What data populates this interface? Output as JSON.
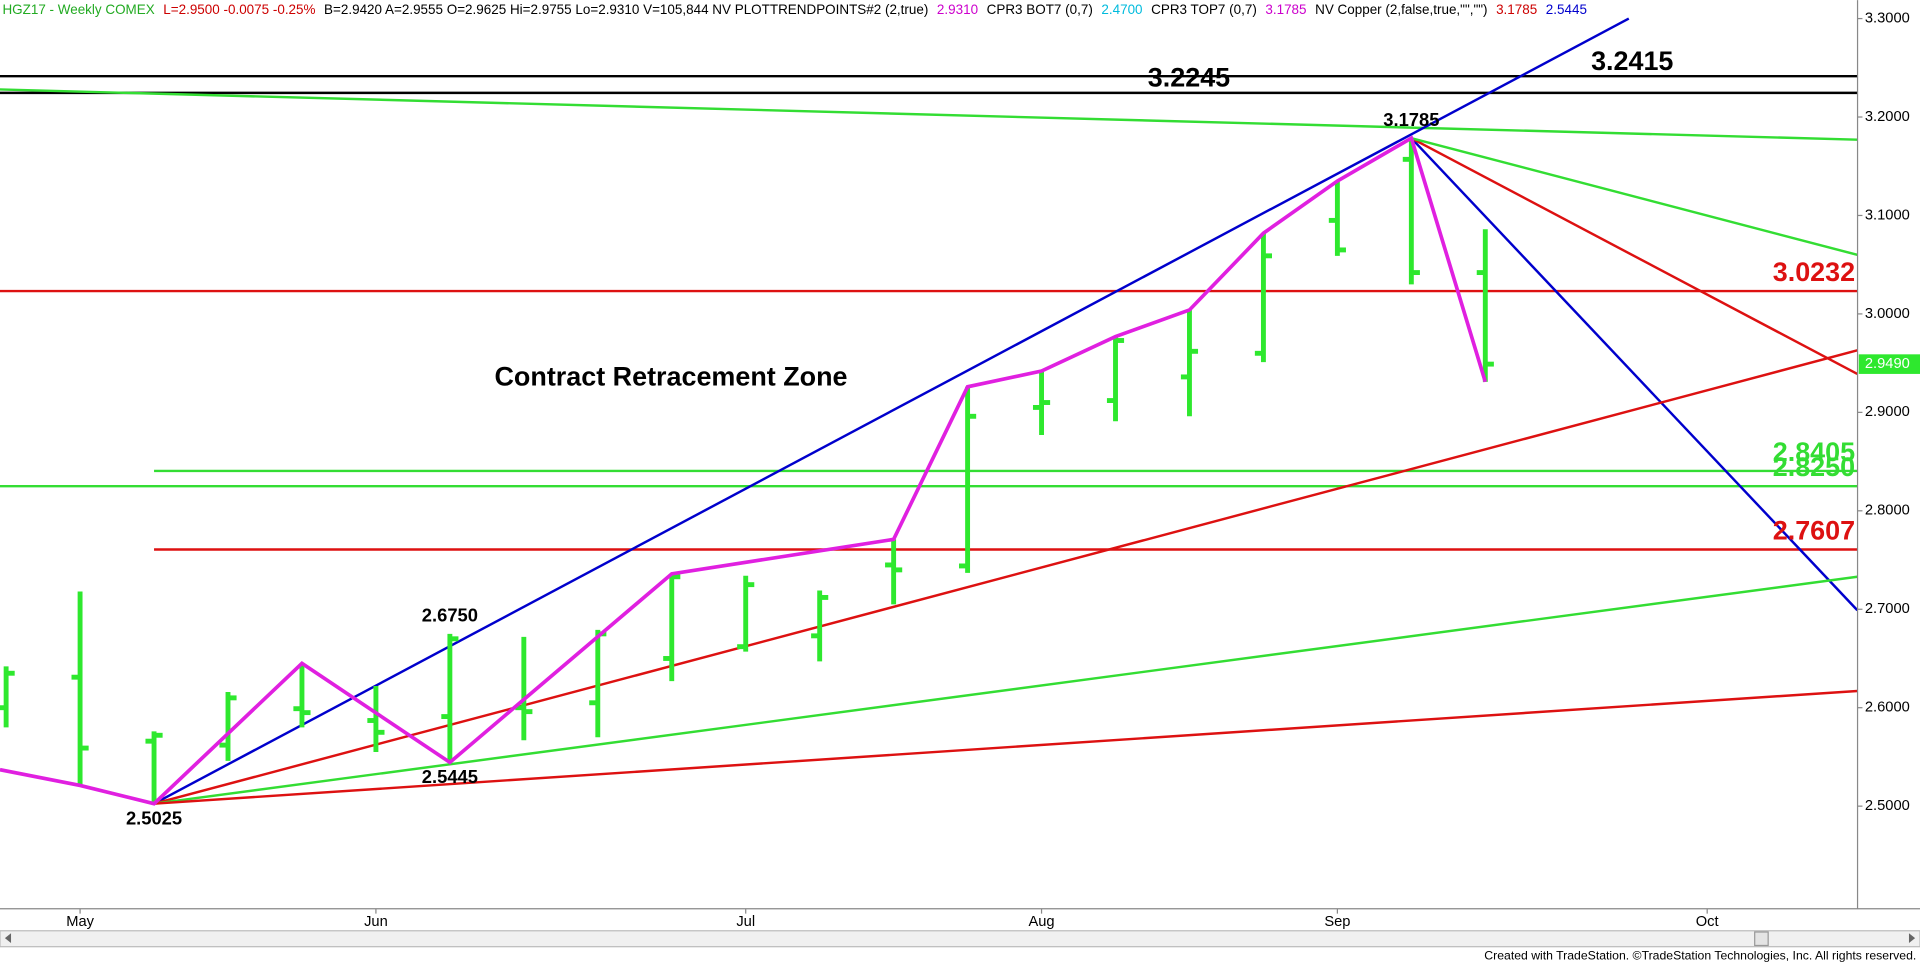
{
  "header": {
    "segments": [
      {
        "text": "HGZ17 - Weekly  COMEX",
        "color": "#22aa22"
      },
      {
        "text": "L=2.9500  -0.0075  -0.25%",
        "color": "#cc0000"
      },
      {
        "text": "B=2.9420  A=2.9555  O=2.9625  Hi=2.9755  Lo=2.9310  V=105,844  NV  PLOTTRENDPOINTS#2 (2,true)",
        "color": "#000000"
      },
      {
        "text": "2.9310",
        "color": "#cc00cc"
      },
      {
        "text": "CPR3 BOT7 (0,7)",
        "color": "#000000"
      },
      {
        "text": "2.4700",
        "color": "#00bbdd"
      },
      {
        "text": "CPR3 TOP7 (0,7)",
        "color": "#000000"
      },
      {
        "text": "3.1785",
        "color": "#cc00cc"
      },
      {
        "text": "NV Copper (2,false,true,\"\",\"\")",
        "color": "#000000"
      },
      {
        "text": "3.1785",
        "color": "#cc0000"
      },
      {
        "text": "2.5445",
        "color": "#0000cc"
      }
    ]
  },
  "footer": "Created with TradeStation. ©TradeStation Technologies, Inc. All rights reserved.",
  "chart_data": {
    "type": "ohlc",
    "categories": [
      null,
      "May",
      null,
      null,
      null,
      "Jun",
      null,
      null,
      null,
      null,
      "Jul",
      null,
      null,
      null,
      "Aug",
      null,
      null,
      null,
      "Sep",
      null,
      null,
      null,
      null,
      "Oct",
      null,
      null
    ],
    "open": [
      2.6,
      2.631,
      2.566,
      2.562,
      2.599,
      2.587,
      2.591,
      2.6,
      2.605,
      2.65,
      2.662,
      2.673,
      2.745,
      2.744,
      2.905,
      2.912,
      2.936,
      2.96,
      3.095,
      3.157,
      3.042,
      null,
      null,
      null,
      null,
      null
    ],
    "high": [
      2.642,
      2.718,
      2.576,
      2.616,
      2.645,
      2.622,
      2.675,
      2.672,
      2.679,
      2.736,
      2.734,
      2.719,
      2.771,
      2.926,
      2.942,
      2.977,
      3.004,
      3.082,
      3.135,
      3.1785,
      3.086,
      null,
      null,
      null,
      null,
      null
    ],
    "low": [
      2.58,
      2.521,
      2.5025,
      2.546,
      2.58,
      2.555,
      2.5445,
      2.567,
      2.57,
      2.627,
      2.657,
      2.647,
      2.705,
      2.737,
      2.877,
      2.891,
      2.896,
      2.951,
      3.059,
      3.03,
      2.931,
      null,
      null,
      null,
      null,
      null
    ],
    "close": [
      2.635,
      2.559,
      2.572,
      2.61,
      2.595,
      2.575,
      2.67,
      2.596,
      2.675,
      2.733,
      2.725,
      2.712,
      2.74,
      2.896,
      2.91,
      2.973,
      2.962,
      3.059,
      3.065,
      3.042,
      2.949,
      null,
      null,
      null,
      null,
      null
    ],
    "bar_color": "#2ee82e",
    "zigzag": {
      "color": "#e020e0",
      "x": [
        -0.083,
        1,
        2,
        4,
        6,
        9,
        12,
        13,
        14,
        15,
        16,
        17,
        18,
        19,
        20
      ],
      "values": [
        2.537,
        2.521,
        2.5025,
        2.645,
        2.5445,
        2.736,
        2.771,
        2.926,
        2.942,
        2.977,
        3.004,
        3.082,
        3.135,
        3.1785,
        2.931
      ]
    },
    "trendlines": [
      {
        "color": "#33dd33",
        "x": [
          -0.083,
          25.03
        ],
        "values": [
          3.228,
          3.177
        ]
      },
      {
        "color": "#0000cc",
        "x": [
          2,
          21.94
        ],
        "values": [
          2.5025,
          3.3
        ]
      },
      {
        "color": "#0000cc",
        "x": [
          19,
          25.03
        ],
        "values": [
          3.1785,
          2.699
        ]
      },
      {
        "color": "#dd1111",
        "x": [
          19,
          25.03
        ],
        "values": [
          3.1785,
          2.939
        ]
      },
      {
        "color": "#33dd33",
        "x": [
          19,
          25.03
        ],
        "values": [
          3.1785,
          3.06
        ]
      },
      {
        "color": "#dd1111",
        "x": [
          2,
          25.03
        ],
        "values": [
          2.5025,
          2.963
        ]
      },
      {
        "color": "#33dd33",
        "x": [
          2,
          25.03
        ],
        "values": [
          2.5025,
          2.733
        ]
      },
      {
        "color": "#dd1111",
        "x": [
          2,
          25.03
        ],
        "values": [
          2.5025,
          2.617
        ]
      }
    ],
    "levels": [
      {
        "value": 3.2415,
        "label": "3.2415",
        "color": "#000000"
      },
      {
        "value": 3.2245,
        "label": "3.2245",
        "color": "#000000"
      },
      {
        "value": 3.0232,
        "label": "3.0232",
        "color": "#dd1111"
      },
      {
        "value": 2.8405,
        "label": "2.8405",
        "color": "#33dd33",
        "from": 2
      },
      {
        "value": 2.825,
        "label": "2.8250",
        "color": "#33dd33"
      },
      {
        "value": 2.7607,
        "label": "2.7607",
        "color": "#dd1111",
        "from": 2
      }
    ],
    "annotations": [
      {
        "label": "3.1785",
        "value": 3.1785,
        "x": 19,
        "pos": "above"
      },
      {
        "label": "2.6750",
        "value": 2.675,
        "x": 6,
        "pos": "above"
      },
      {
        "label": "2.5445",
        "value": 2.5445,
        "x": 6,
        "pos": "below"
      },
      {
        "label": "2.5025",
        "value": 2.5025,
        "x": 2,
        "pos": "below"
      }
    ],
    "zone_text": "Contract Retracement Zone",
    "last_price": {
      "value": 2.949,
      "label": "2.9490",
      "color": "#2ee82e"
    },
    "ylim": [
      2.3958,
      3.3187
    ],
    "yticks": [
      {
        "value": 2.5,
        "label": "2.5000"
      },
      {
        "value": 2.6,
        "label": "2.6000"
      },
      {
        "value": 2.7,
        "label": "2.7000"
      },
      {
        "value": 2.8,
        "label": "2.8000"
      },
      {
        "value": 2.9,
        "label": "2.9000"
      },
      {
        "value": 3.0,
        "label": "3.0000"
      },
      {
        "value": 3.1,
        "label": "3.1000"
      },
      {
        "value": 3.2,
        "label": "3.2000"
      },
      {
        "value": 3.3,
        "label": "3.3000"
      }
    ]
  }
}
